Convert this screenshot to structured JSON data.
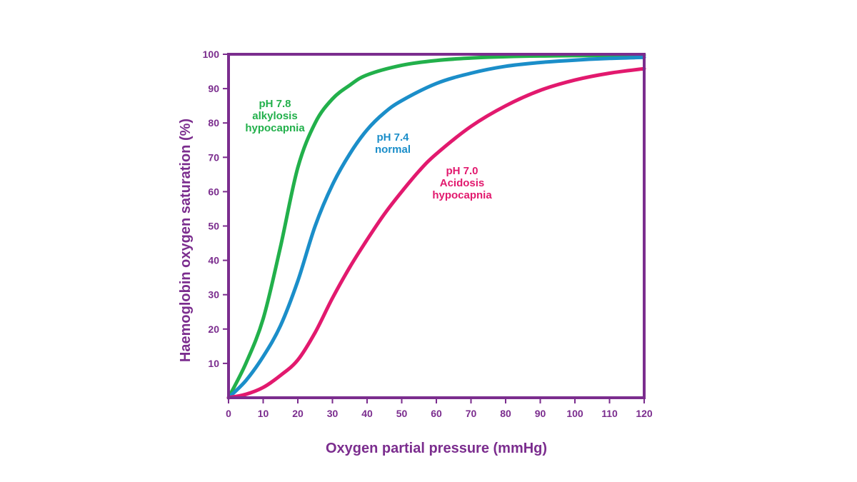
{
  "chart_data": {
    "type": "line",
    "title": "",
    "xlabel": "Oxygen partial pressure (mmHg)",
    "ylabel": "Haemoglobin oxygen saturation (%)",
    "xlim": [
      0,
      120
    ],
    "ylim": [
      0,
      100
    ],
    "x_ticks": [
      0,
      10,
      20,
      30,
      40,
      50,
      60,
      70,
      80,
      90,
      100,
      110,
      120
    ],
    "y_ticks": [
      10,
      20,
      30,
      40,
      50,
      60,
      70,
      80,
      90,
      100
    ],
    "grid": false,
    "legend": "inline labels",
    "colors": {
      "axis": "#7b2d8e",
      "alkalosis": "#22b04b",
      "normal": "#1b8ec9",
      "acidosis": "#e2196e"
    },
    "series": [
      {
        "color_key": "alkalosis",
        "label_lines": [
          "pH 7.8",
          "alkylosis",
          "hypocapnia"
        ],
        "x": [
          0,
          5,
          10,
          15,
          20,
          25,
          30,
          35,
          40,
          50,
          60,
          70,
          80,
          90,
          100,
          110,
          120
        ],
        "y": [
          0,
          10,
          23,
          44,
          67,
          80,
          87,
          91,
          94,
          96.8,
          98.2,
          98.9,
          99.3,
          99.5,
          99.6,
          99.7,
          99.8
        ]
      },
      {
        "color_key": "normal",
        "label_lines": [
          "pH 7.4",
          "normal"
        ],
        "x": [
          0,
          5,
          10,
          15,
          20,
          25,
          30,
          35,
          40,
          45,
          50,
          60,
          70,
          80,
          90,
          100,
          110,
          120
        ],
        "y": [
          0,
          5,
          12,
          21,
          34,
          50,
          62,
          71,
          78,
          83,
          86.5,
          91.5,
          94.5,
          96.5,
          97.6,
          98.3,
          98.8,
          99.1
        ]
      },
      {
        "color_key": "acidosis",
        "label_lines": [
          "pH 7.0",
          "Acidosis",
          "hypocapnia"
        ],
        "x": [
          0,
          5,
          10,
          15,
          20,
          25,
          30,
          35,
          40,
          45,
          50,
          55,
          60,
          70,
          80,
          90,
          100,
          110,
          120
        ],
        "y": [
          0,
          1,
          3,
          6.5,
          11,
          19,
          29,
          38,
          46,
          53.5,
          60,
          66,
          71,
          79,
          85,
          89.5,
          92.5,
          94.5,
          95.8
        ]
      }
    ]
  }
}
